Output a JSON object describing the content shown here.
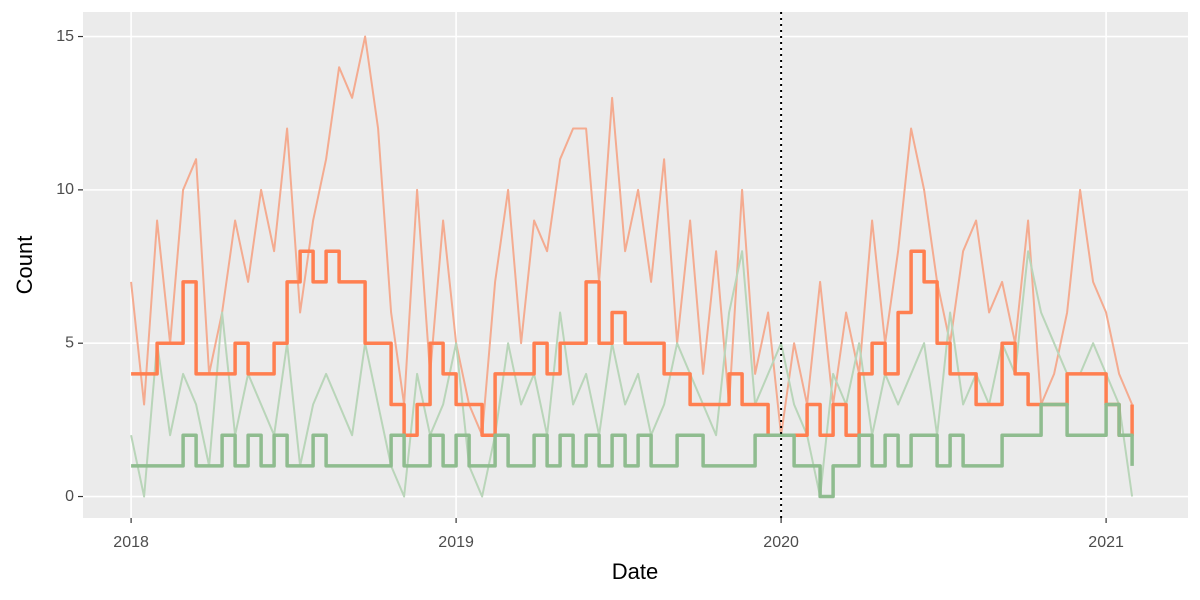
{
  "chart_data": {
    "type": "line",
    "x_label": "Date",
    "y_label": "Count",
    "x": [
      2018.0,
      2018.04,
      2018.08,
      2018.12,
      2018.16,
      2018.2,
      2018.24,
      2018.28,
      2018.32,
      2018.36,
      2018.4,
      2018.44,
      2018.48,
      2018.52,
      2018.56,
      2018.6,
      2018.64,
      2018.68,
      2018.72,
      2018.76,
      2018.8,
      2018.84,
      2018.88,
      2018.92,
      2018.96,
      2019.0,
      2019.04,
      2019.08,
      2019.12,
      2019.16,
      2019.2,
      2019.24,
      2019.28,
      2019.32,
      2019.36,
      2019.4,
      2019.44,
      2019.48,
      2019.52,
      2019.56,
      2019.6,
      2019.64,
      2019.68,
      2019.72,
      2019.76,
      2019.8,
      2019.84,
      2019.88,
      2019.92,
      2019.96,
      2020.0,
      2020.04,
      2020.08,
      2020.12,
      2020.16,
      2020.2,
      2020.24,
      2020.28,
      2020.32,
      2020.36,
      2020.4,
      2020.44,
      2020.48,
      2020.52,
      2020.56,
      2020.6,
      2020.64,
      2020.68,
      2020.72,
      2020.76,
      2020.8,
      2020.84,
      2020.88,
      2020.92,
      2020.96,
      2021.0,
      2021.04,
      2021.08
    ],
    "series": [
      {
        "color": "#f4ab90",
        "width": 2,
        "step": false,
        "values": [
          7,
          3,
          9,
          5,
          10,
          11,
          4,
          6,
          9,
          7,
          10,
          8,
          12,
          6,
          9,
          11,
          14,
          13,
          15,
          12,
          6,
          3,
          10,
          4,
          9,
          5,
          3,
          2,
          7,
          10,
          5,
          9,
          8,
          11,
          12,
          12,
          7,
          13,
          8,
          10,
          7,
          11,
          5,
          9,
          4,
          8,
          3,
          10,
          4,
          6,
          2,
          5,
          3,
          7,
          3,
          6,
          4,
          9,
          5,
          8,
          12,
          10,
          7,
          5,
          8,
          9,
          6,
          7,
          5,
          9,
          3,
          4,
          6,
          10,
          7,
          6,
          4,
          3
        ]
      },
      {
        "color": "#b9d5b9",
        "width": 2,
        "step": false,
        "values": [
          2,
          0,
          5,
          2,
          4,
          3,
          1,
          6,
          2,
          4,
          3,
          2,
          5,
          1,
          3,
          4,
          3,
          2,
          5,
          3,
          1,
          0,
          4,
          2,
          3,
          5,
          1,
          0,
          2,
          5,
          3,
          4,
          2,
          6,
          3,
          4,
          2,
          5,
          3,
          4,
          2,
          3,
          5,
          4,
          3,
          2,
          6,
          8,
          3,
          4,
          5,
          3,
          2,
          0,
          4,
          3,
          5,
          2,
          4,
          3,
          4,
          5,
          2,
          6,
          3,
          4,
          3,
          5,
          4,
          8,
          6,
          5,
          4,
          4,
          5,
          4,
          3,
          0
        ]
      },
      {
        "color": "#ff7f50",
        "width": 3.5,
        "step": true,
        "values": [
          4,
          4,
          5,
          5,
          7,
          4,
          4,
          4,
          5,
          4,
          4,
          5,
          7,
          8,
          7,
          8,
          7,
          7,
          5,
          5,
          3,
          2,
          3,
          5,
          4,
          3,
          3,
          2,
          4,
          4,
          4,
          5,
          4,
          5,
          5,
          7,
          5,
          6,
          5,
          5,
          5,
          4,
          4,
          3,
          3,
          3,
          4,
          3,
          3,
          2,
          2,
          2,
          3,
          2,
          3,
          2,
          4,
          5,
          4,
          6,
          8,
          7,
          5,
          4,
          4,
          3,
          3,
          5,
          4,
          3,
          3,
          3,
          4,
          4,
          4,
          3,
          2,
          3
        ]
      },
      {
        "color": "#8fbc8f",
        "width": 3.5,
        "step": true,
        "values": [
          1,
          1,
          1,
          1,
          2,
          1,
          1,
          2,
          1,
          2,
          1,
          2,
          1,
          1,
          2,
          1,
          1,
          1,
          1,
          1,
          2,
          1,
          1,
          2,
          1,
          2,
          1,
          1,
          2,
          1,
          1,
          2,
          1,
          2,
          1,
          2,
          1,
          2,
          1,
          2,
          1,
          1,
          2,
          2,
          1,
          1,
          1,
          1,
          2,
          2,
          2,
          1,
          1,
          0,
          1,
          1,
          2,
          1,
          2,
          1,
          2,
          2,
          1,
          2,
          1,
          1,
          1,
          2,
          2,
          2,
          3,
          3,
          2,
          2,
          2,
          3,
          2,
          1
        ]
      }
    ],
    "xlim": [
      2017.852,
      2021.252
    ],
    "xticks": [
      2018,
      2019,
      2020,
      2021
    ],
    "ylim": [
      -0.7,
      15.8
    ],
    "yticks": [
      0,
      5,
      10,
      15
    ],
    "vline": 2020,
    "grid": true,
    "background": "#ebebeb"
  }
}
